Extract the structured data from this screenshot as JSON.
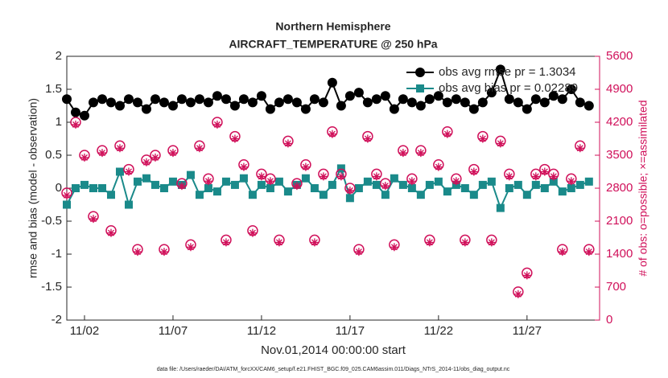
{
  "chart_data": {
    "type": "line",
    "title": "Northern Hemisphere",
    "subtitle": "AIRCRAFT_TEMPERATURE @ 250 hPa",
    "xlabel": "Nov.01,2014 00:00:00 start",
    "ylabel": "rmse and bias (model - observation)",
    "y2label": "# of obs: o=possible; ×=assimilated",
    "footnote": "data file: /Users/raeder/DAI/ATM_forcXX/CAM6_setup/f.e21.FHIST_BGC.f09_025.CAM6assim.011/Diags_NTrS_2014-11/obs_diag_output.nc",
    "legend": "northeast",
    "xlim": [
      1,
      31.1
    ],
    "xticks": [
      {
        "value": 2,
        "label": "11/02"
      },
      {
        "value": 7,
        "label": "11/07"
      },
      {
        "value": 12,
        "label": "11/12"
      },
      {
        "value": 17,
        "label": "11/17"
      },
      {
        "value": 22,
        "label": "11/22"
      },
      {
        "value": 27,
        "label": "11/27"
      }
    ],
    "ylim": [
      -2,
      2
    ],
    "yticks": [
      -2,
      -1.5,
      -1,
      -0.5,
      0,
      0.5,
      1,
      1.5,
      2
    ],
    "y2lim": [
      0,
      5600
    ],
    "y2ticks": [
      0,
      700,
      1400,
      2100,
      2800,
      3500,
      4200,
      4900,
      5600
    ],
    "x": [
      1,
      1.5,
      2,
      2.5,
      3,
      3.5,
      4,
      4.5,
      5,
      5.5,
      6,
      6.5,
      7,
      7.5,
      8,
      8.5,
      9,
      9.5,
      10,
      10.5,
      11,
      11.5,
      12,
      12.5,
      13,
      13.5,
      14,
      14.5,
      15,
      15.5,
      16,
      16.5,
      17,
      17.5,
      18,
      18.5,
      19,
      19.5,
      20,
      20.5,
      21,
      21.5,
      22,
      22.5,
      23,
      23.5,
      24,
      24.5,
      25,
      25.5,
      26,
      26.5,
      27,
      27.5,
      28,
      28.5,
      29,
      29.5,
      30,
      30.5
    ],
    "series": [
      {
        "name": "obs avg rmse pr = 1.3034",
        "color": "#000000",
        "marker": "circle",
        "values": [
          1.35,
          1.15,
          1.1,
          1.3,
          1.35,
          1.3,
          1.25,
          1.35,
          1.3,
          1.2,
          1.35,
          1.3,
          1.25,
          1.35,
          1.3,
          1.35,
          1.3,
          1.4,
          1.35,
          1.25,
          1.35,
          1.3,
          1.4,
          1.2,
          1.3,
          1.35,
          1.3,
          1.2,
          1.35,
          1.3,
          1.6,
          1.25,
          1.4,
          1.45,
          1.3,
          1.35,
          1.4,
          1.2,
          1.35,
          1.3,
          1.25,
          1.35,
          1.4,
          1.3,
          1.35,
          1.3,
          1.2,
          1.3,
          1.45,
          1.8,
          1.35,
          1.3,
          1.2,
          1.35,
          1.3,
          1.4,
          1.35,
          1.5,
          1.3,
          1.25
        ]
      },
      {
        "name": "obs avg bias pr = 0.02289",
        "color": "#1a8a8a",
        "marker": "square",
        "values": [
          -0.25,
          0.0,
          0.05,
          0.0,
          0.0,
          -0.1,
          0.25,
          -0.25,
          0.1,
          0.15,
          0.05,
          0.0,
          0.1,
          0.05,
          0.2,
          -0.1,
          0.0,
          -0.05,
          0.1,
          0.05,
          0.15,
          -0.1,
          0.05,
          0.0,
          0.1,
          -0.05,
          0.05,
          0.15,
          0.0,
          -0.1,
          0.05,
          0.3,
          -0.15,
          0.0,
          0.1,
          0.05,
          -0.1,
          0.15,
          0.05,
          0.0,
          -0.1,
          0.05,
          0.1,
          -0.05,
          0.05,
          0.0,
          -0.1,
          0.05,
          0.1,
          -0.3,
          0.0,
          0.05,
          -0.1,
          0.05,
          0.0,
          0.1,
          -0.05,
          0.0,
          0.05,
          0.1
        ]
      },
      {
        "color": "#d0105a",
        "marker": "open-circle",
        "axis": "y2",
        "values": [
          2700,
          4200,
          3500,
          2200,
          3600,
          1900,
          3700,
          3200,
          1500,
          3400,
          3500,
          1500,
          3600,
          2900,
          1600,
          3700,
          3000,
          4200,
          1700,
          3900,
          3300,
          1900,
          3100,
          3000,
          1700,
          3800,
          2900,
          3300,
          1700,
          3100,
          4000,
          3100,
          2800,
          1500,
          3900,
          3100,
          2900,
          1600,
          3600,
          3000,
          3600,
          1700,
          3300,
          4000,
          3000,
          1700,
          3200,
          3900,
          1700,
          3800,
          3100,
          600,
          1000,
          3100,
          3200,
          3100,
          1500,
          3000,
          3700,
          1500
        ]
      },
      {
        "color": "#d0105a",
        "marker": "asterisk",
        "axis": "y2",
        "values": [
          2650,
          4150,
          3450,
          2150,
          3550,
          1850,
          3650,
          3150,
          1450,
          3350,
          3450,
          1450,
          3550,
          2850,
          1550,
          3650,
          2950,
          4150,
          1650,
          3850,
          3250,
          1850,
          3050,
          2950,
          1650,
          3750,
          2850,
          3250,
          1650,
          3050,
          3950,
          3050,
          2750,
          1450,
          3850,
          3050,
          2850,
          1550,
          3550,
          2950,
          3550,
          1650,
          3250,
          3950,
          2950,
          1650,
          3150,
          3850,
          1650,
          3750,
          3050,
          550,
          950,
          3050,
          3150,
          3050,
          1450,
          2950,
          3650,
          1450
        ]
      }
    ]
  }
}
